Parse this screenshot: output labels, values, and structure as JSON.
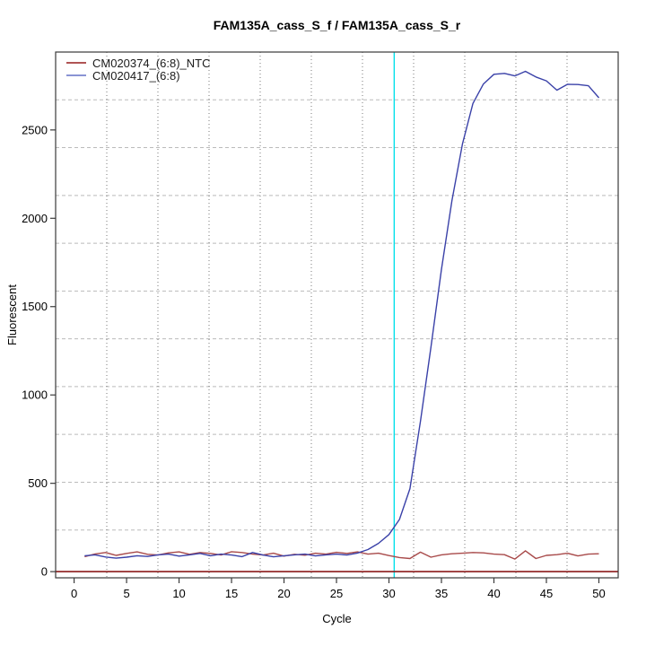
{
  "chart_data": {
    "type": "line",
    "title": "FAM135A_cass_S_f / FAM135A_cass_S_r",
    "xlabel": "Cycle",
    "ylabel": "Fluorescent",
    "x_start_cycle": 1,
    "xlim": [
      -1.76,
      51.84
    ],
    "ylim": [
      -35,
      2941
    ],
    "xticks": [
      0,
      5,
      10,
      15,
      20,
      25,
      30,
      35,
      40,
      45,
      50
    ],
    "yticks": [
      0,
      500,
      1000,
      1500,
      2000,
      2500
    ],
    "grid": {
      "nx": 11,
      "ny": 11,
      "vertical_style": "dotted",
      "horizontal_style": "dashed",
      "vertical_color": "#787878",
      "horizontal_color": "#bbbbbb"
    },
    "threshold_line": {
      "y": 0,
      "color": "#8b1a1a"
    },
    "ct_line": {
      "x": 30.5,
      "color": "#00e0ea"
    },
    "legend_position": "top-left",
    "series": [
      {
        "name": "CM020374_(6:8)_NTC",
        "color": "#a84a4a",
        "legend_color": "#b05454",
        "values": [
          85,
          100,
          108,
          92,
          103,
          112,
          98,
          94,
          106,
          112,
          98,
          108,
          103,
          94,
          113,
          108,
          99,
          94,
          104,
          88,
          98,
          93,
          104,
          99,
          109,
          103,
          112,
          99,
          104,
          91,
          80,
          74,
          110,
          82,
          95,
          101,
          104,
          108,
          106,
          99,
          96,
          71,
          118,
          74,
          92,
          96,
          104,
          89,
          99,
          101
        ]
      },
      {
        "name": "CM020417_(6:8)",
        "color": "#3a41a8",
        "legend_color": "#8a94d4",
        "values": [
          90,
          95,
          83,
          76,
          82,
          90,
          86,
          95,
          99,
          88,
          95,
          103,
          90,
          99,
          94,
          85,
          108,
          94,
          84,
          90,
          95,
          99,
          89,
          95,
          99,
          94,
          105,
          125,
          160,
          210,
          295,
          470,
          850,
          1270,
          1710,
          2100,
          2420,
          2650,
          2760,
          2815,
          2820,
          2806,
          2832,
          2800,
          2778,
          2725,
          2758,
          2757,
          2750,
          2682
        ]
      }
    ]
  }
}
